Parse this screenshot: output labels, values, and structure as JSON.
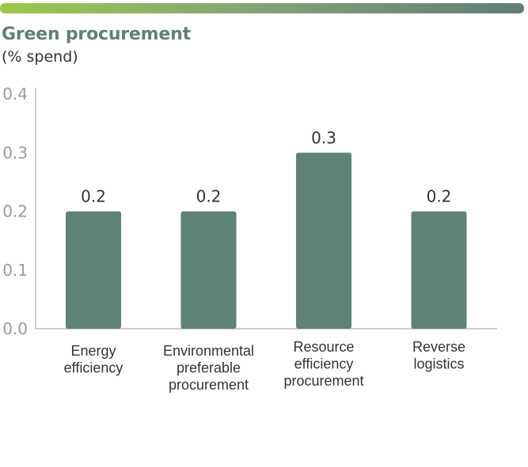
{
  "header": {
    "title": "Green procurement",
    "subtitle": "(% spend)"
  },
  "colors": {
    "bar": "#5e8275",
    "title": "#5e8275",
    "axis": "#9a9a9a"
  },
  "chart_data": {
    "type": "bar",
    "title": "Green procurement",
    "subtitle": "(% spend)",
    "categories": [
      [
        "Energy",
        "efficiency"
      ],
      [
        "Environmental",
        "preferable",
        "procurement"
      ],
      [
        "Resource",
        "efficiency",
        "procurement"
      ],
      [
        "Reverse",
        "logistics"
      ]
    ],
    "values": [
      0.2,
      0.2,
      0.3,
      0.2
    ],
    "value_labels": [
      "0.2",
      "0.2",
      "0.3",
      "0.2"
    ],
    "yticks": [
      "0.0",
      "0.1",
      "0.2",
      "0.3",
      "0.4"
    ],
    "ylim": [
      0,
      0.4
    ],
    "xlabel": "",
    "ylabel": "",
    "grid": false,
    "legend": "none"
  }
}
